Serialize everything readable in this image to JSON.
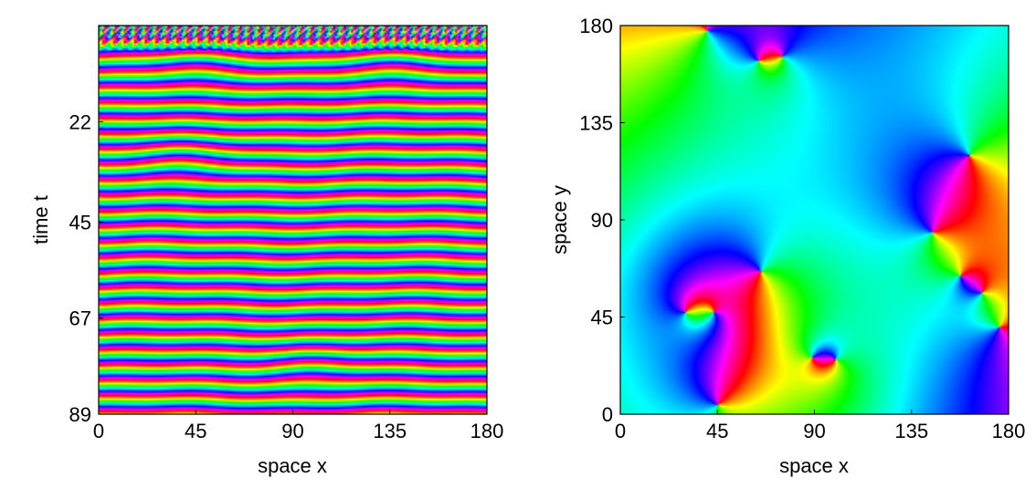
{
  "chart_data": [
    {
      "type": "heatmap",
      "description_kind": "phase map (cyclic hue) of space-time evolution",
      "xlabel": "space x",
      "ylabel": "time t",
      "xlim": [
        0,
        180
      ],
      "ylim": [
        89,
        0
      ],
      "xticks": [
        "0",
        "45",
        "90",
        "135",
        "180"
      ],
      "yticks": [
        "22",
        "45",
        "67",
        "89"
      ],
      "colormap": "hsv (cyclic phase)",
      "pattern": {
        "stripes": "horizontal phase bands repeating in time",
        "band_period_t": 3.55,
        "defects_near": [
          [
            45,
            8
          ],
          [
            40,
            30
          ],
          [
            135,
            8
          ],
          [
            100,
            78
          ]
        ]
      }
    },
    {
      "type": "heatmap",
      "description_kind": "phase map (cyclic hue) of 2D spatial field",
      "xlabel": "space x",
      "ylabel": "space y",
      "xlim": [
        0,
        180
      ],
      "ylim": [
        0,
        180
      ],
      "xticks": [
        "0",
        "45",
        "90",
        "135",
        "180"
      ],
      "yticks": [
        "0",
        "45",
        "90",
        "135",
        "180"
      ],
      "colormap": "hsv (cyclic phase)",
      "phase_singularities": [
        {
          "x": 40,
          "y": 178,
          "charge": 1
        },
        {
          "x": 64,
          "y": 164,
          "charge": -1
        },
        {
          "x": 75,
          "y": 166,
          "charge": 1
        },
        {
          "x": 162,
          "y": 120,
          "charge": 1
        },
        {
          "x": 145,
          "y": 84,
          "charge": -1
        },
        {
          "x": 158,
          "y": 64,
          "charge": 1
        },
        {
          "x": 168,
          "y": 56,
          "charge": -1
        },
        {
          "x": 176,
          "y": 40,
          "charge": 1
        },
        {
          "x": 65,
          "y": 66,
          "charge": 1
        },
        {
          "x": 30,
          "y": 47,
          "charge": -1
        },
        {
          "x": 43,
          "y": 47,
          "charge": 1
        },
        {
          "x": 89,
          "y": 26,
          "charge": -1
        },
        {
          "x": 100,
          "y": 25,
          "charge": 1
        },
        {
          "x": 45,
          "y": 4,
          "charge": -1
        }
      ]
    }
  ],
  "colors": {
    "red": "#ff0000",
    "yellow": "#ffff00",
    "green": "#00ff00",
    "cyan": "#00ffff",
    "blue": "#0000ff",
    "magenta": "#ff00ff"
  }
}
